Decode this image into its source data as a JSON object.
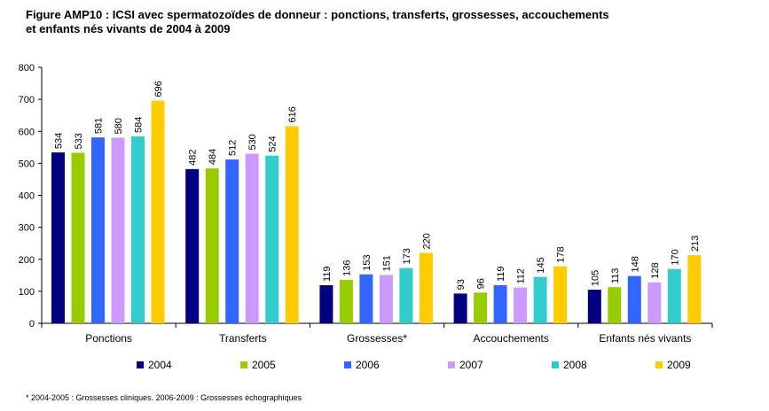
{
  "chart_data": {
    "type": "bar",
    "title": "Figure AMP10 : ICSI avec spermatozoïdes de donneur : ponctions, transferts, grossesses, accouchements",
    "subtitle": "et enfants nés vivants de 2004 à 2009",
    "xlabel": "",
    "ylabel": "",
    "ylim": [
      0,
      800
    ],
    "yticks": [
      "0",
      "100",
      "200",
      "300",
      "400",
      "500",
      "600",
      "700",
      "800"
    ],
    "grid": false,
    "legend_position": "bottom",
    "categories": [
      "Ponctions",
      "Transferts",
      "Grossesses*",
      "Accouchements",
      "Enfants nés vivants"
    ],
    "series": [
      {
        "name": "2004",
        "color": "#000080",
        "values": [
          534,
          482,
          119,
          93,
          105
        ]
      },
      {
        "name": "2005",
        "color": "#99cc00",
        "values": [
          533,
          484,
          136,
          96,
          113
        ]
      },
      {
        "name": "2006",
        "color": "#3366ff",
        "values": [
          581,
          512,
          153,
          119,
          148
        ]
      },
      {
        "name": "2007",
        "color": "#cc99ff",
        "values": [
          580,
          530,
          151,
          112,
          128
        ]
      },
      {
        "name": "2008",
        "color": "#33cccc",
        "values": [
          584,
          524,
          173,
          145,
          170
        ]
      },
      {
        "name": "2009",
        "color": "#ffcc00",
        "values": [
          696,
          616,
          220,
          178,
          213
        ]
      }
    ],
    "footnote": "* 2004-2005 : Grossesses cliniques. 2006-2009 : Grossesses échographiques"
  }
}
